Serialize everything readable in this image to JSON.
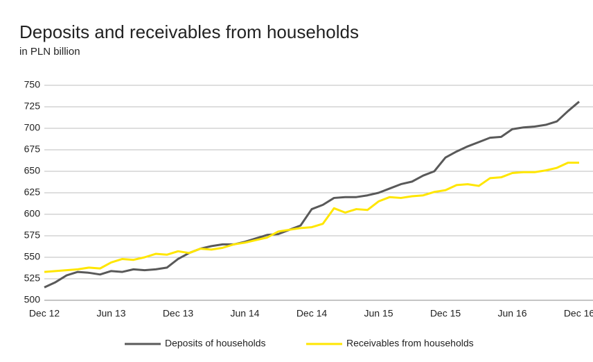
{
  "chart_data": {
    "type": "line",
    "title": "Deposits and receivables from households",
    "subtitle": "in PLN billion",
    "categories": [
      "Dec 12",
      null,
      null,
      null,
      null,
      null,
      "Jun 13",
      null,
      null,
      null,
      null,
      null,
      "Dec 13",
      null,
      null,
      null,
      null,
      null,
      "Jun 14",
      null,
      null,
      null,
      null,
      null,
      "Dec 14",
      null,
      null,
      null,
      null,
      null,
      "Jun 15",
      null,
      null,
      null,
      null,
      null,
      "Dec 15",
      null,
      null,
      null,
      null,
      null,
      "Jun 16",
      null,
      null,
      null,
      null,
      null,
      "Dec 16"
    ],
    "series": [
      {
        "name": "Deposits of households",
        "color": "#595959",
        "values": [
          515,
          521,
          529,
          533,
          532,
          530,
          534,
          533,
          536,
          535,
          536,
          538,
          548,
          555,
          560,
          563,
          565,
          565,
          568,
          572,
          576,
          577,
          582,
          587,
          606,
          611,
          619,
          620,
          620,
          622,
          625,
          630,
          635,
          638,
          645,
          650,
          666,
          673,
          679,
          684,
          689,
          690,
          699,
          701,
          702,
          704,
          708,
          720,
          731
        ]
      },
      {
        "name": "Receivables from households",
        "color": "#ffe600",
        "values": [
          533,
          534,
          535,
          536,
          538,
          537,
          544,
          548,
          547,
          550,
          554,
          553,
          557,
          555,
          560,
          559,
          561,
          565,
          567,
          570,
          573,
          580,
          582,
          584,
          585,
          589,
          607,
          602,
          606,
          605,
          615,
          620,
          619,
          621,
          622,
          626,
          628,
          634,
          635,
          633,
          642,
          643,
          648,
          649,
          649,
          651,
          654,
          660,
          660
        ]
      }
    ],
    "ylim": [
      500,
      750
    ],
    "yticks": [
      500,
      525,
      550,
      575,
      600,
      625,
      650,
      675,
      700,
      725,
      750
    ],
    "grid": true,
    "legend": "bottom"
  }
}
